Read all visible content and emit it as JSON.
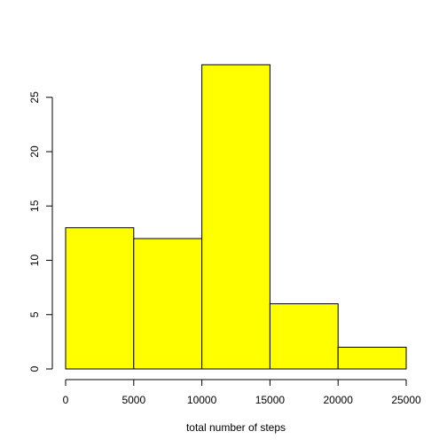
{
  "chart_data": {
    "type": "bar",
    "subtype": "histogram",
    "bins": [
      {
        "from": 0,
        "to": 5000,
        "count": 13
      },
      {
        "from": 5000,
        "to": 10000,
        "count": 12
      },
      {
        "from": 10000,
        "to": 15000,
        "count": 28
      },
      {
        "from": 15000,
        "to": 20000,
        "count": 6
      },
      {
        "from": 20000,
        "to": 25000,
        "count": 2
      }
    ],
    "title": "",
    "xlabel": "total number of steps",
    "ylabel": "",
    "xlim": [
      0,
      25000
    ],
    "ylim": [
      0,
      28
    ],
    "xticks": [
      "0",
      "5000",
      "10000",
      "15000",
      "20000",
      "25000"
    ],
    "yticks": [
      "0",
      "5",
      "10",
      "15",
      "20",
      "25"
    ],
    "bar_color": "#ffff00",
    "bar_border_color": "#000000",
    "grid": false,
    "legend": "none"
  }
}
